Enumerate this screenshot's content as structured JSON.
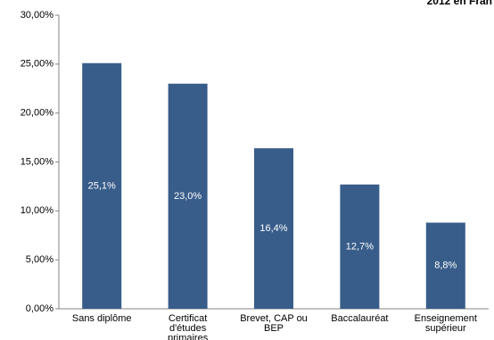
{
  "chart_data": {
    "type": "bar",
    "title": "2012 en Fran",
    "categories": [
      "Sans diplôme",
      "Certificat d'études primaires",
      "Brevet, CAP ou BEP",
      "Baccalauréat",
      "Enseignement supérieur"
    ],
    "values": [
      25.1,
      23.0,
      16.4,
      12.7,
      8.8
    ],
    "value_labels": [
      "25,1%",
      "23,0%",
      "16,4%",
      "12,7%",
      "8,8%"
    ],
    "color": "#385d8a",
    "ylim": [
      0,
      30
    ],
    "yticks": [
      {
        "value": 0,
        "label": "0,00%"
      },
      {
        "value": 5,
        "label": "5,00%"
      },
      {
        "value": 10,
        "label": "10,00%"
      },
      {
        "value": 15,
        "label": "15,00%"
      },
      {
        "value": 20,
        "label": "20,00%"
      },
      {
        "value": 25,
        "label": "25,00%"
      },
      {
        "value": 30,
        "label": "30,00%"
      }
    ],
    "grid": false
  }
}
